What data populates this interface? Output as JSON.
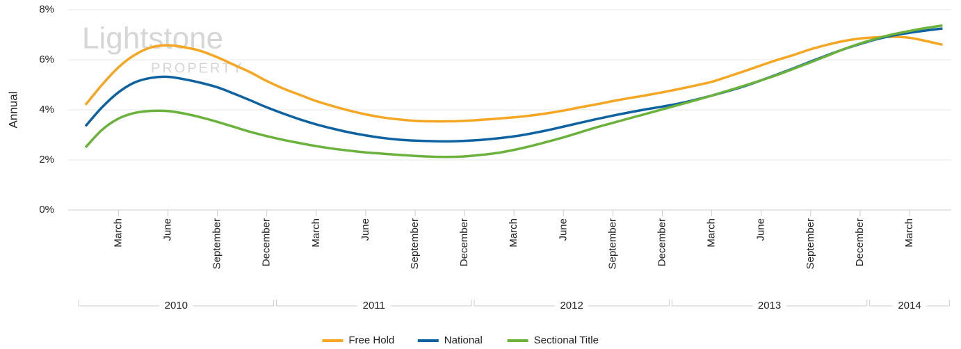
{
  "chart_data": {
    "type": "line",
    "y_label": "Annual",
    "watermark": {
      "title": "Lightstone",
      "subtitle": "PROPERTY"
    },
    "categories": [
      null,
      null,
      "March",
      null,
      null,
      "June",
      null,
      null,
      "September",
      null,
      null,
      "December",
      null,
      null,
      "March",
      null,
      null,
      "June",
      null,
      null,
      "September",
      null,
      null,
      "December",
      null,
      null,
      "March",
      null,
      null,
      "June",
      null,
      null,
      "September",
      null,
      null,
      "December",
      null,
      null,
      "March",
      null,
      null,
      "June",
      null,
      null,
      "September",
      null,
      null,
      "December",
      null,
      null,
      "March",
      null,
      null
    ],
    "category_groups": [
      {
        "label": "2010",
        "size": 12
      },
      {
        "label": "2011",
        "size": 12
      },
      {
        "label": "2012",
        "size": 12
      },
      {
        "label": "2013",
        "size": 12
      },
      {
        "label": "2014",
        "size": 5
      }
    ],
    "ylim": [
      0,
      8
    ],
    "yticks": [
      {
        "value": 0,
        "label": "0%"
      },
      {
        "value": 2,
        "label": "2%"
      },
      {
        "value": 4,
        "label": "4%"
      },
      {
        "value": 6,
        "label": "6%"
      },
      {
        "value": 8,
        "label": "8%"
      }
    ],
    "grid": true,
    "legend": "bottom",
    "series": [
      {
        "name": "Free Hold",
        "color": "#f5a623",
        "values": [
          4.2,
          5.0,
          5.7,
          6.2,
          6.5,
          6.58,
          6.5,
          6.35,
          6.1,
          5.8,
          5.5,
          5.15,
          4.85,
          4.6,
          4.35,
          4.15,
          3.97,
          3.82,
          3.7,
          3.62,
          3.56,
          3.54,
          3.54,
          3.56,
          3.6,
          3.65,
          3.7,
          3.77,
          3.86,
          3.97,
          4.1,
          4.22,
          4.35,
          4.47,
          4.58,
          4.7,
          4.83,
          4.97,
          5.12,
          5.33,
          5.55,
          5.78,
          6.0,
          6.2,
          6.42,
          6.6,
          6.75,
          6.85,
          6.9,
          6.92,
          6.88,
          6.75,
          6.6
        ]
      },
      {
        "name": "National",
        "color": "#0e62a0",
        "values": [
          3.35,
          4.1,
          4.7,
          5.1,
          5.28,
          5.32,
          5.22,
          5.08,
          4.9,
          4.65,
          4.38,
          4.1,
          3.85,
          3.62,
          3.42,
          3.25,
          3.1,
          2.98,
          2.88,
          2.81,
          2.77,
          2.75,
          2.74,
          2.76,
          2.8,
          2.86,
          2.94,
          3.05,
          3.18,
          3.33,
          3.48,
          3.63,
          3.77,
          3.9,
          4.02,
          4.13,
          4.25,
          4.4,
          4.57,
          4.75,
          4.95,
          5.18,
          5.42,
          5.67,
          5.93,
          6.18,
          6.42,
          6.63,
          6.82,
          6.97,
          7.08,
          7.17,
          7.25
        ]
      },
      {
        "name": "Sectional Title",
        "color": "#6ab23c",
        "values": [
          2.5,
          3.2,
          3.65,
          3.88,
          3.96,
          3.95,
          3.85,
          3.7,
          3.52,
          3.32,
          3.12,
          2.95,
          2.8,
          2.67,
          2.55,
          2.45,
          2.37,
          2.3,
          2.25,
          2.2,
          2.16,
          2.13,
          2.12,
          2.14,
          2.2,
          2.28,
          2.4,
          2.55,
          2.72,
          2.9,
          3.1,
          3.3,
          3.48,
          3.66,
          3.84,
          4.02,
          4.2,
          4.38,
          4.57,
          4.77,
          4.97,
          5.18,
          5.4,
          5.65,
          5.9,
          6.16,
          6.42,
          6.65,
          6.85,
          7.02,
          7.15,
          7.27,
          7.37
        ]
      }
    ]
  }
}
